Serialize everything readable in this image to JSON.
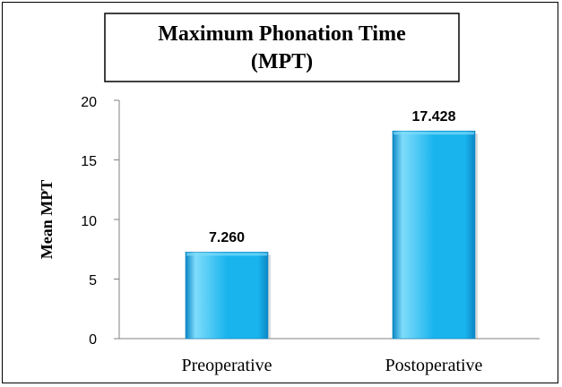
{
  "chart_data": {
    "type": "bar",
    "title_lines": [
      "Maximum Phonation Time",
      "(MPT)"
    ],
    "xlabel": "",
    "ylabel": "Mean MPT",
    "categories": [
      "Preoperative",
      "Postoperative"
    ],
    "values": [
      7.26,
      17.428
    ],
    "data_labels": [
      "7.260",
      "17.428"
    ],
    "ylim": [
      0,
      20
    ],
    "yticks": [
      "0",
      "5",
      "10",
      "15",
      "20"
    ],
    "grid": false,
    "legend": "none"
  },
  "colors": {
    "bar_light": "#7fdcfb",
    "bar_main": "#19b4ee",
    "bar_dark": "#0b86c4",
    "axis": "#808080"
  }
}
